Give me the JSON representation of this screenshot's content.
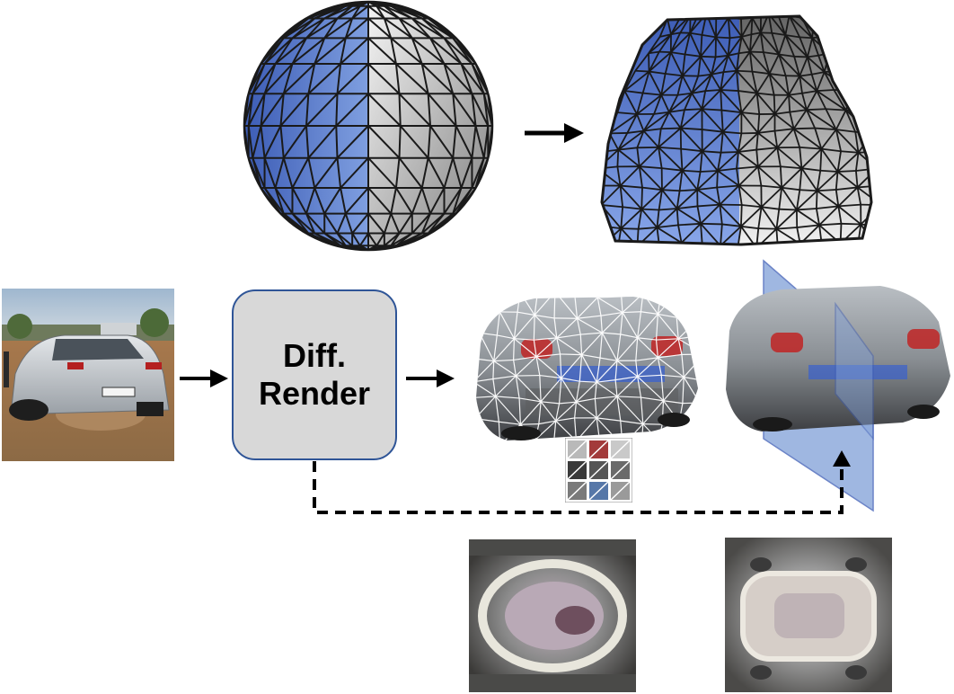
{
  "render_box": {
    "line1": "Diff.",
    "line2": "Render"
  },
  "colors": {
    "mesh_blue": "#6f8fd8",
    "mesh_blue_dark": "#3b5bb5",
    "mesh_gray": "#c8c8c8",
    "mesh_white": "#f2f2f2",
    "box_fill": "#d8d8d8",
    "box_border": "#2f5597",
    "plane_blue": "#7f9fd8",
    "arrow": "#000000"
  },
  "icons": [
    "sphere-mesh-icon",
    "deformed-mesh-icon",
    "car-photo",
    "textured-car-mesh",
    "symmetry-plane",
    "uv-texture-map",
    "texture-grid-icon"
  ]
}
